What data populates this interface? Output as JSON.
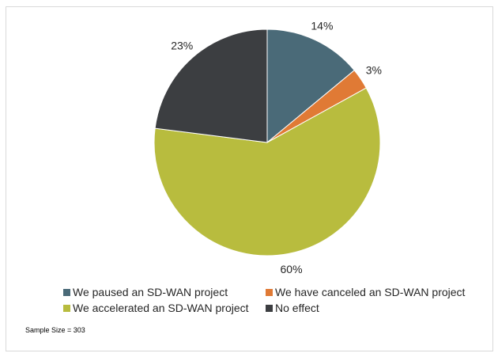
{
  "chart_data": {
    "type": "pie",
    "title": "",
    "slices": [
      {
        "label": "We paused an SD-WAN project",
        "value": 14,
        "data_label": "14%",
        "color": "#4a6a78"
      },
      {
        "label": "We have canceled an SD-WAN project",
        "value": 3,
        "data_label": "3%",
        "color": "#e07a35"
      },
      {
        "label": "We accelerated an SD-WAN project",
        "value": 60,
        "data_label": "60%",
        "color": "#b8bc3e"
      },
      {
        "label": "No effect",
        "value": 23,
        "data_label": "23%",
        "color": "#3c3e41"
      }
    ],
    "legend_placement": "bottom",
    "start_angle": "top, clockwise"
  },
  "note": "Sample Size = 303"
}
